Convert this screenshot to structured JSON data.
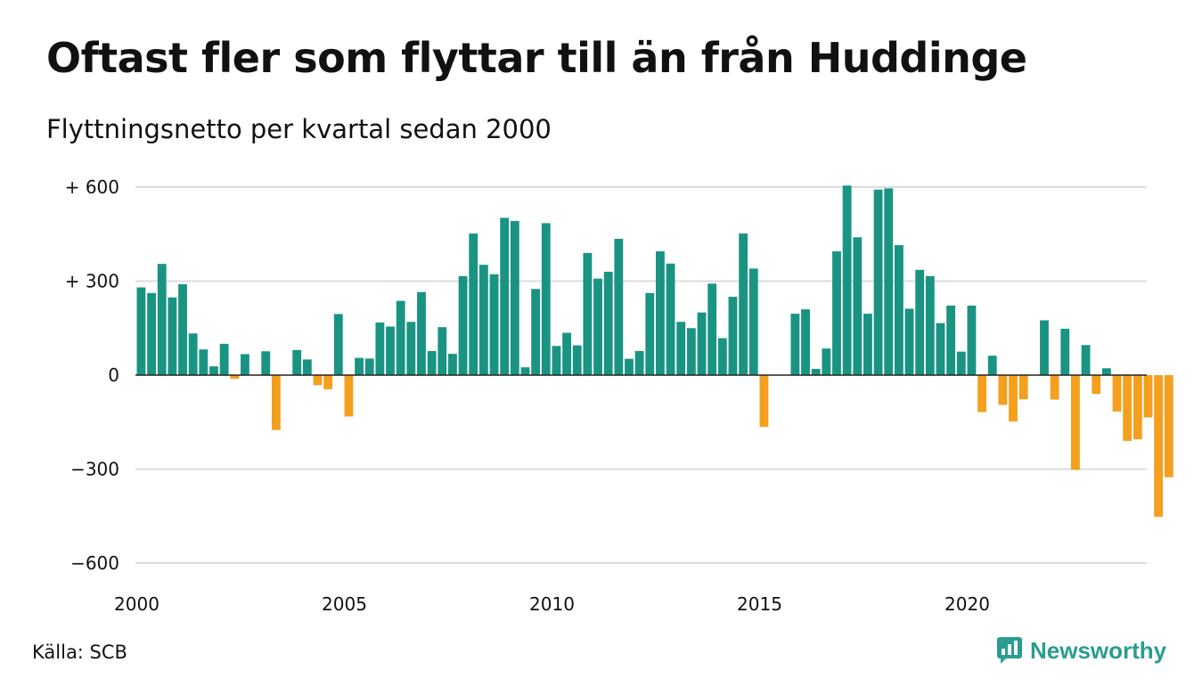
{
  "chart_data": {
    "type": "bar",
    "title": "Oftast fler som flyttar till än från Huddinge",
    "subtitle": "Flyttningsnetto per kvartal sedan 2000",
    "xlabel": "",
    "ylabel": "",
    "x_start_year": 2000,
    "periods_per_year": 4,
    "ylim": [
      -600,
      600
    ],
    "y_ticks": [
      {
        "value": 600,
        "label": "+ 600"
      },
      {
        "value": 300,
        "label": "+ 300"
      },
      {
        "value": 0,
        "label": "0"
      },
      {
        "value": -300,
        "label": "−300"
      },
      {
        "value": -600,
        "label": "−600"
      }
    ],
    "x_ticks": [
      {
        "year": 2000,
        "label": "2000"
      },
      {
        "year": 2005,
        "label": "2005"
      },
      {
        "year": 2010,
        "label": "2010"
      },
      {
        "year": 2015,
        "label": "2015"
      },
      {
        "year": 2020,
        "label": "2020"
      }
    ],
    "grid": true,
    "colors": {
      "positive": "#1a9482",
      "negative": "#f59f1f",
      "grid": "#dddddd",
      "zero_line": "#222222"
    },
    "values": [
      280,
      262,
      355,
      248,
      290,
      133,
      82,
      28,
      100,
      -12,
      67,
      0,
      76,
      -175,
      0,
      80,
      50,
      -32,
      -45,
      195,
      -132,
      55,
      53,
      168,
      155,
      237,
      170,
      265,
      77,
      153,
      68,
      316,
      452,
      352,
      322,
      502,
      492,
      25,
      275,
      485,
      93,
      135,
      95,
      390,
      308,
      330,
      435,
      52,
      77,
      262,
      395,
      356,
      170,
      150,
      200,
      292,
      118,
      250,
      452,
      340,
      -165,
      0,
      0,
      196,
      210,
      20,
      85,
      395,
      605,
      440,
      196,
      592,
      596,
      415,
      212,
      336,
      316,
      166,
      222,
      75,
      222,
      -118,
      62,
      -95,
      -148,
      -77,
      0,
      175,
      -78,
      148,
      -302,
      96,
      -60,
      22,
      -116,
      -210,
      -205,
      -135,
      -452,
      -326
    ]
  },
  "source": "Källa: SCB",
  "brand": {
    "name": "Newsworthy",
    "logo_icon": "newsworthy-logo-icon",
    "color": "#2a9d8f"
  }
}
